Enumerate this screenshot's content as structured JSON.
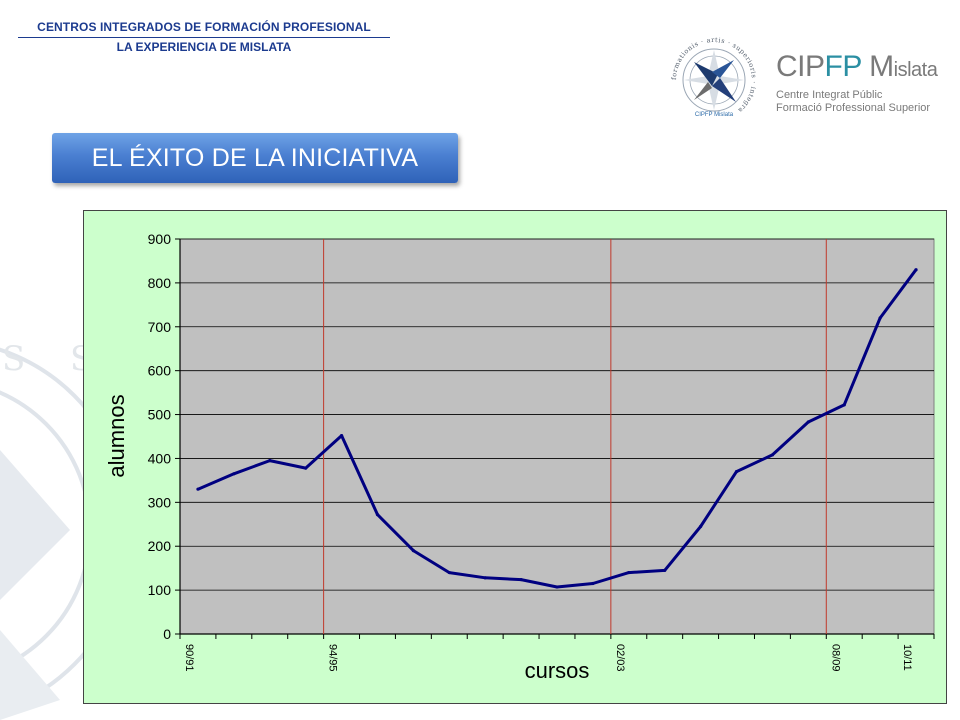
{
  "header": {
    "title": "CENTROS INTEGRADOS DE FORMACIÓN PROFESIONAL",
    "subtitle": "LA EXPERIENCIA DE MISLATA"
  },
  "logo": {
    "name_prefix": "CIP",
    "name_accent": "FP",
    "name_m": "M",
    "name_rest": "islata",
    "line1": "Centre Integrat Públic",
    "line2": "Formació Professional Superior",
    "emblem_ring": "formationis · artis · superioris · integra",
    "emblem_caption": "CIPFP Mislata",
    "icon": "compass-star-emblem"
  },
  "banner": {
    "text": "EL ÉXITO DE LA INICIATIVA"
  },
  "colors": {
    "brand_blue": "#1c3b8f",
    "banner_blue": "#4a7fd1",
    "chart_area": "#ccffcc",
    "plot_area": "#c0c0c0",
    "line": "#000080",
    "markers": "#c0392b"
  },
  "chart_data": {
    "type": "line",
    "title": "",
    "xlabel": "cursos",
    "ylabel": "alumnos",
    "ylim": [
      0,
      900
    ],
    "yticks": [
      0,
      100,
      200,
      300,
      400,
      500,
      600,
      700,
      800,
      900
    ],
    "grid": true,
    "legend": "none",
    "n_points": 21,
    "x_tick_labels": [
      {
        "index": 0,
        "label": "90/91"
      },
      {
        "index": 4,
        "label": "94/95"
      },
      {
        "index": 12,
        "label": "02/03"
      },
      {
        "index": 18,
        "label": "08/09"
      },
      {
        "index": 20,
        "label": "10/11"
      }
    ],
    "vertical_markers": [
      4,
      12,
      18
    ],
    "series": [
      {
        "values": [
          330,
          365,
          395,
          378,
          452,
          272,
          190,
          140,
          128,
          124,
          107,
          115,
          140,
          145,
          245,
          370,
          408,
          483,
          522,
          720,
          830
        ]
      }
    ]
  }
}
